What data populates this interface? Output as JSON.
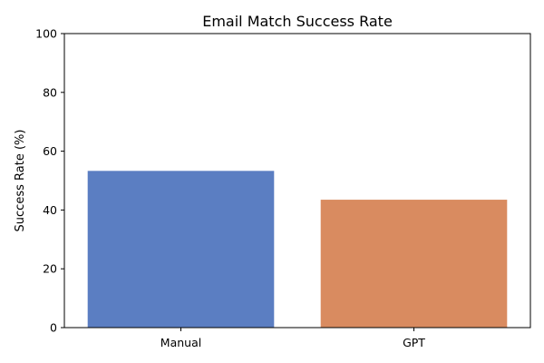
{
  "chart_data": {
    "type": "bar",
    "title": "Email Match Success Rate",
    "xlabel": "",
    "ylabel": "Success Rate (%)",
    "categories": [
      "Manual",
      "GPT"
    ],
    "values": [
      53.3,
      43.5
    ],
    "ylim": [
      0,
      100
    ],
    "yticks": [
      0,
      20,
      40,
      60,
      80,
      100
    ],
    "grid": false,
    "colors": [
      "#5b7ec2",
      "#d98b60"
    ]
  }
}
